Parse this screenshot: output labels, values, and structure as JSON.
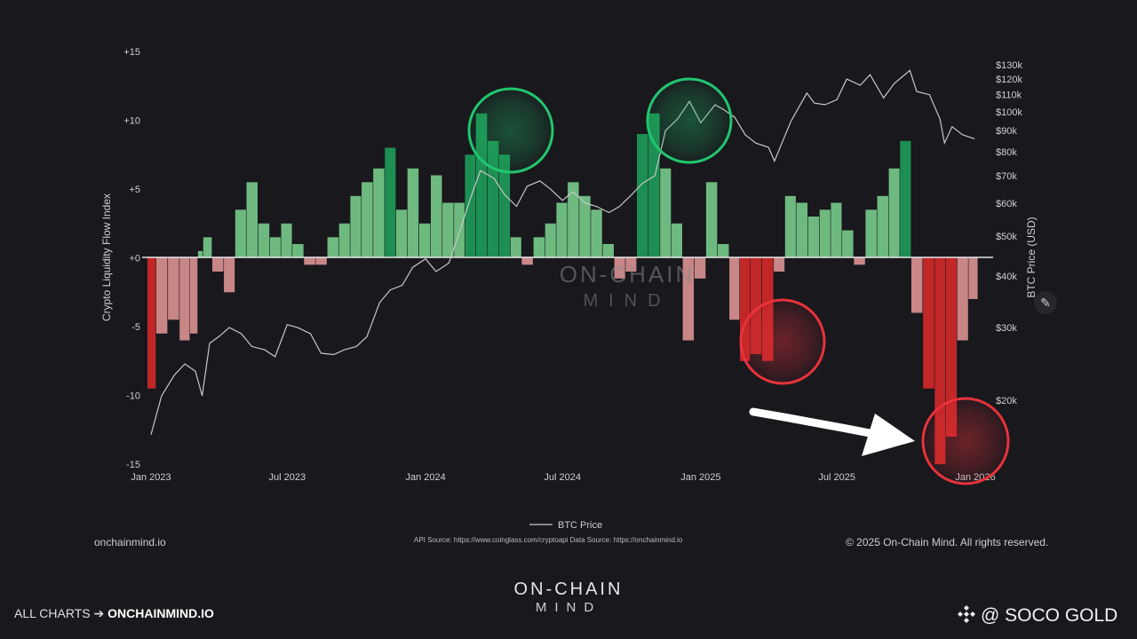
{
  "chart_data": {
    "type": "bar",
    "ylabel": "Crypto Liquidity Flow Index",
    "ylabel_right": "BTC Price (USD)",
    "ylim": [
      -15,
      15
    ],
    "y_ticks": [
      "+15",
      "+10",
      "+5",
      "+0",
      "-5",
      "-10",
      "-15"
    ],
    "y_tick_values": [
      15,
      10,
      5,
      0,
      -5,
      -10,
      -15
    ],
    "y2_ticks": [
      "$130k",
      "$120k",
      "$110k",
      "$100k",
      "$90k",
      "$80k",
      "$70k",
      "$60k",
      "$50k",
      "$40k",
      "$30k",
      "$20k"
    ],
    "y2_tick_values": [
      130,
      120,
      110,
      100,
      90,
      80,
      70,
      60,
      50,
      40,
      30,
      20
    ],
    "y2_scale": "log",
    "y2_range_k": [
      14,
      140
    ],
    "x_ticks": [
      "Jan 2023",
      "Jul 2023",
      "Jan 2024",
      "Jul 2024",
      "Jan 2025",
      "Jul 2025",
      "Jan 2026"
    ],
    "x_tick_dates": [
      "2023-01-01",
      "2023-07-01",
      "2024-01-01",
      "2024-07-01",
      "2025-01-01",
      "2025-07-01",
      "2026-01-01"
    ],
    "legend": "BTC Price",
    "legend_position": "bottom-center",
    "flow_index": {
      "dates": [
        "2023-01-01",
        "2023-01-15",
        "2023-02-01",
        "2023-02-15",
        "2023-03-01",
        "2023-03-08",
        "2023-03-15",
        "2023-04-01",
        "2023-04-15",
        "2023-05-01",
        "2023-05-15",
        "2023-06-01",
        "2023-06-15",
        "2023-07-01",
        "2023-07-15",
        "2023-08-01",
        "2023-08-15",
        "2023-09-01",
        "2023-09-15",
        "2023-10-01",
        "2023-10-15",
        "2023-11-01",
        "2023-11-15",
        "2023-12-01",
        "2023-12-15",
        "2024-01-01",
        "2024-01-15",
        "2024-02-01",
        "2024-02-15",
        "2024-03-01",
        "2024-03-15",
        "2024-04-01",
        "2024-04-15",
        "2024-05-01",
        "2024-05-15",
        "2024-06-01",
        "2024-06-15",
        "2024-07-01",
        "2024-07-15",
        "2024-08-01",
        "2024-08-15",
        "2024-09-01",
        "2024-09-15",
        "2024-10-01",
        "2024-10-15",
        "2024-11-01",
        "2024-11-15",
        "2024-12-01",
        "2024-12-15",
        "2025-01-01",
        "2025-01-15",
        "2025-02-01",
        "2025-02-15",
        "2025-03-01",
        "2025-03-15",
        "2025-04-01",
        "2025-04-15",
        "2025-05-01",
        "2025-05-15",
        "2025-06-01",
        "2025-06-15",
        "2025-07-01",
        "2025-07-15",
        "2025-08-01",
        "2025-08-15",
        "2025-09-01",
        "2025-09-15",
        "2025-10-01",
        "2025-10-15",
        "2025-11-01",
        "2025-11-15",
        "2025-12-01",
        "2025-12-15",
        "2025-12-31"
      ],
      "values": [
        -9.5,
        -5.5,
        -4.5,
        -6,
        -5.5,
        0.5,
        1.5,
        -1,
        -2.5,
        3.5,
        5.5,
        2.5,
        1.5,
        2.5,
        1,
        -0.5,
        -0.5,
        1.5,
        2.5,
        4.5,
        5.5,
        6.5,
        8,
        3.5,
        6.5,
        2.5,
        6,
        4,
        4,
        7.5,
        10.5,
        8.5,
        7.5,
        1.5,
        -0.5,
        1.5,
        2.5,
        4,
        5.5,
        4.5,
        3.5,
        1,
        -1.5,
        -1,
        9,
        10.5,
        6.5,
        2.5,
        -6,
        -1.5,
        5.5,
        1,
        -4.5,
        -7.5,
        -7,
        -7.5,
        -1,
        4.5,
        4,
        3,
        3.5,
        4,
        2,
        -0.5,
        3.5,
        4.5,
        6.5,
        8.5,
        -4,
        -9.5,
        -15,
        -13,
        -6,
        -3
      ]
    },
    "btc_price_k": {
      "dates": [
        "2023-01-01",
        "2023-01-15",
        "2023-02-01",
        "2023-02-15",
        "2023-03-01",
        "2023-03-10",
        "2023-03-20",
        "2023-04-01",
        "2023-04-15",
        "2023-05-01",
        "2023-05-15",
        "2023-06-01",
        "2023-06-15",
        "2023-07-01",
        "2023-07-15",
        "2023-08-01",
        "2023-08-15",
        "2023-09-01",
        "2023-09-15",
        "2023-10-01",
        "2023-10-15",
        "2023-11-01",
        "2023-11-15",
        "2023-12-01",
        "2023-12-15",
        "2024-01-01",
        "2024-01-15",
        "2024-02-01",
        "2024-02-15",
        "2024-03-01",
        "2024-03-14",
        "2024-04-01",
        "2024-04-15",
        "2024-05-01",
        "2024-05-15",
        "2024-06-01",
        "2024-06-15",
        "2024-07-01",
        "2024-07-15",
        "2024-08-01",
        "2024-08-15",
        "2024-09-01",
        "2024-09-15",
        "2024-10-01",
        "2024-10-15",
        "2024-11-01",
        "2024-11-15",
        "2024-12-01",
        "2024-12-17",
        "2025-01-01",
        "2025-01-20",
        "2025-02-01",
        "2025-02-15",
        "2025-03-01",
        "2025-03-15",
        "2025-04-01",
        "2025-04-09",
        "2025-04-20",
        "2025-05-01",
        "2025-05-22",
        "2025-06-01",
        "2025-06-15",
        "2025-07-01",
        "2025-07-14",
        "2025-08-01",
        "2025-08-14",
        "2025-09-01",
        "2025-09-15",
        "2025-10-06",
        "2025-10-15",
        "2025-11-01",
        "2025-11-15",
        "2025-11-21",
        "2025-12-01",
        "2025-12-15",
        "2025-12-31"
      ],
      "values": [
        16.5,
        20.5,
        23,
        24.5,
        23.5,
        20.5,
        27.5,
        28.5,
        30,
        29,
        27,
        26.5,
        25.5,
        30.5,
        30,
        29,
        26,
        25.8,
        26.5,
        27,
        28.5,
        34.5,
        37,
        38,
        42,
        44,
        41,
        43,
        51,
        62,
        72,
        69,
        63,
        59,
        66,
        68,
        65,
        61,
        64,
        60,
        59,
        57,
        59,
        63,
        67,
        70,
        90,
        96,
        106,
        94,
        104,
        101,
        97,
        88,
        84,
        82,
        76,
        85,
        95,
        111,
        105,
        104,
        107,
        120,
        116,
        123,
        108,
        117,
        126,
        112,
        110,
        96,
        84,
        92,
        88,
        86
      ]
    }
  },
  "footer": {
    "legend_label": "BTC Price",
    "site": "onchainmind.io",
    "api_source": "API Source: https://www.coinglass.com/cryptoapi Data Source: https://onchainmind.io",
    "copyright": "© 2025 On-Chain Mind. All rights reserved."
  },
  "watermark": {
    "line1": "ON-CHAIN",
    "line2": "MIND"
  },
  "brand": {
    "line1": "ON-CHAIN",
    "line2": "MIND"
  },
  "links": {
    "prefix": "ALL CHARTS ➔ ",
    "url": "ONCHAINMIND.IO"
  },
  "social": {
    "handle": "@ SOCO GOLD"
  },
  "colors": {
    "background": "#18181d",
    "positive": "#7ed690",
    "positive_strong": "#1ea55c",
    "negative": "#e89a9a",
    "negative_strong": "#e02a2a",
    "price_line": "#c8c8c8"
  },
  "icons": {
    "edit": "pencil-icon",
    "social": "diamond-logo-icon"
  }
}
